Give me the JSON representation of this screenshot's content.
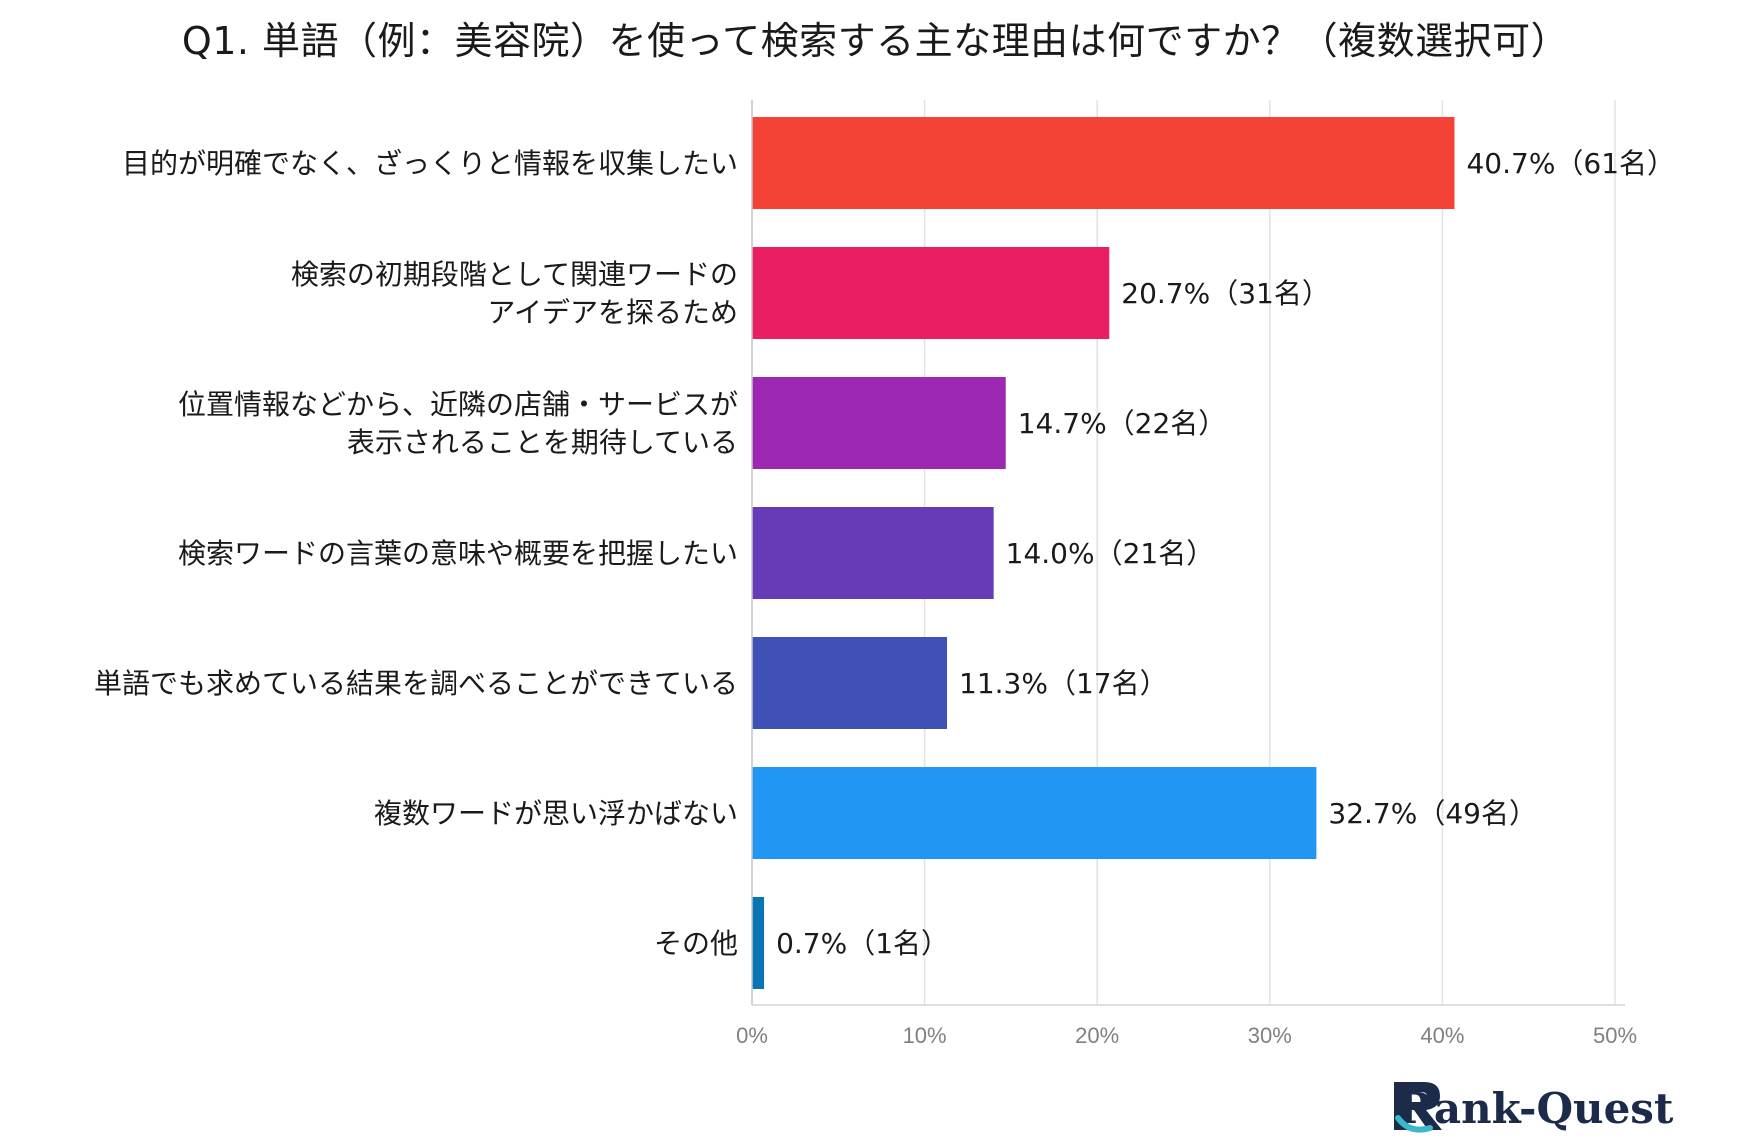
{
  "chart_data": {
    "type": "bar",
    "orientation": "horizontal",
    "title": "Q1. 単語（例：美容院）を使って検索する主な理由は何ですか？（複数選択可）",
    "categories": [
      [
        "目的が明確でなく、ざっくりと情報を収集したい"
      ],
      [
        "検索の初期段階として関連ワードの",
        "アイデアを探るため"
      ],
      [
        "位置情報などから、近隣の店舗・サービスが",
        "表示されることを期待している"
      ],
      [
        "検索ワードの言葉の意味や概要を把握したい"
      ],
      [
        "単語でも求めている結果を調べることができている"
      ],
      [
        "複数ワードが思い浮かばない"
      ],
      [
        "その他"
      ]
    ],
    "values": [
      40.7,
      20.7,
      14.7,
      14.0,
      11.3,
      32.7,
      0.7
    ],
    "data_labels": [
      "40.7%（61名）",
      "20.7%（31名）",
      "14.7%（22名）",
      "14.0%（21名）",
      "11.3%（17名）",
      "32.7%（49名）",
      "0.7%（1名）"
    ],
    "colors": [
      "#f44336",
      "#e91e63",
      "#9c27b0",
      "#673ab7",
      "#3f51b5",
      "#2196f3",
      "#0a75b4"
    ],
    "xlim": [
      0,
      50
    ],
    "xticks": [
      0,
      10,
      20,
      30,
      40,
      50
    ],
    "xtick_labels": [
      "0%",
      "10%",
      "20%",
      "30%",
      "40%",
      "50%"
    ],
    "grid": true,
    "xlabel": "",
    "ylabel": ""
  },
  "logo": {
    "text": "Rank-Quest"
  }
}
